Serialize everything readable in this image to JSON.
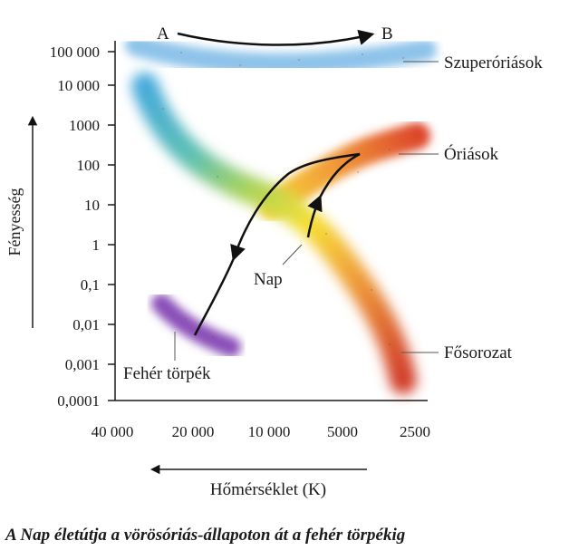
{
  "diagram": {
    "y_axis_label": "Fényesség",
    "x_axis_label": "Hőmérséklet (K)",
    "y_ticks": [
      "100 000",
      "10 000",
      "1000",
      "100",
      "10",
      "1",
      "0,1",
      "0,01",
      "0,001",
      "0,0001"
    ],
    "x_ticks": [
      "40 000",
      "20 000",
      "10 000",
      "5000",
      "2500"
    ],
    "regions": {
      "supergiants": "Szuperóriások",
      "giants": "Óriások",
      "main_sequence": "Fősorozat",
      "white_dwarf": "Fehér törpék"
    },
    "sun_label": "Nap",
    "point_a": "A",
    "point_b": "B",
    "colors": {
      "supergiant_band": "#8ec3ea",
      "hot_blue": "#3fa9df",
      "yellow": "#f7e033",
      "red": "#d9442a",
      "white_dwarf": "#8a4fb8"
    }
  },
  "caption": "A Nap életútja a vörösóriás-állapoton át a fehér törpékig"
}
